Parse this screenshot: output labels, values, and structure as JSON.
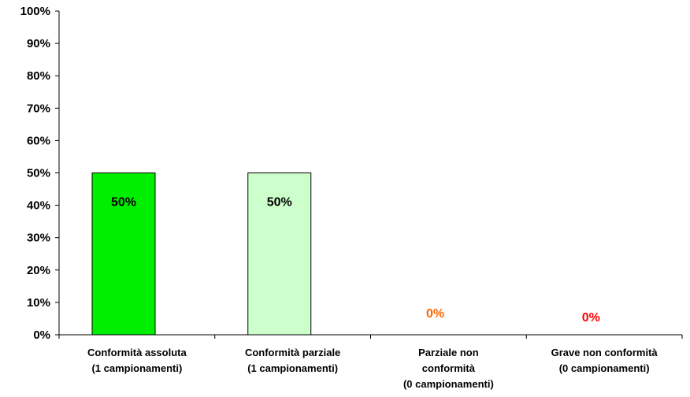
{
  "chart_data": {
    "type": "bar",
    "title": "",
    "xlabel": "",
    "ylabel": "",
    "ylim": [
      0,
      100
    ],
    "ytick_step": 10,
    "yticks": [
      "0%",
      "10%",
      "20%",
      "30%",
      "40%",
      "50%",
      "60%",
      "70%",
      "80%",
      "90%",
      "100%"
    ],
    "categories": [
      [
        "Conformità assoluta",
        "(1 campionamenti)"
      ],
      [
        "Conformità parziale",
        "(1 campionamenti)"
      ],
      [
        "Parziale non",
        "conformità",
        "(0 campionamenti)"
      ],
      [
        "Grave non conformità",
        "(0 campionamenti)"
      ]
    ],
    "values": [
      50,
      50,
      0,
      0
    ],
    "data_labels": [
      "50%",
      "50%",
      "0%",
      "0%"
    ],
    "bar_colors": [
      "#00ee00",
      "#ccffcc",
      "#ffffff",
      "#ffffff"
    ],
    "label_colors": [
      "#000000",
      "#000000",
      "#ff6600",
      "#ff0000"
    ],
    "grid": false,
    "legend": "none"
  }
}
